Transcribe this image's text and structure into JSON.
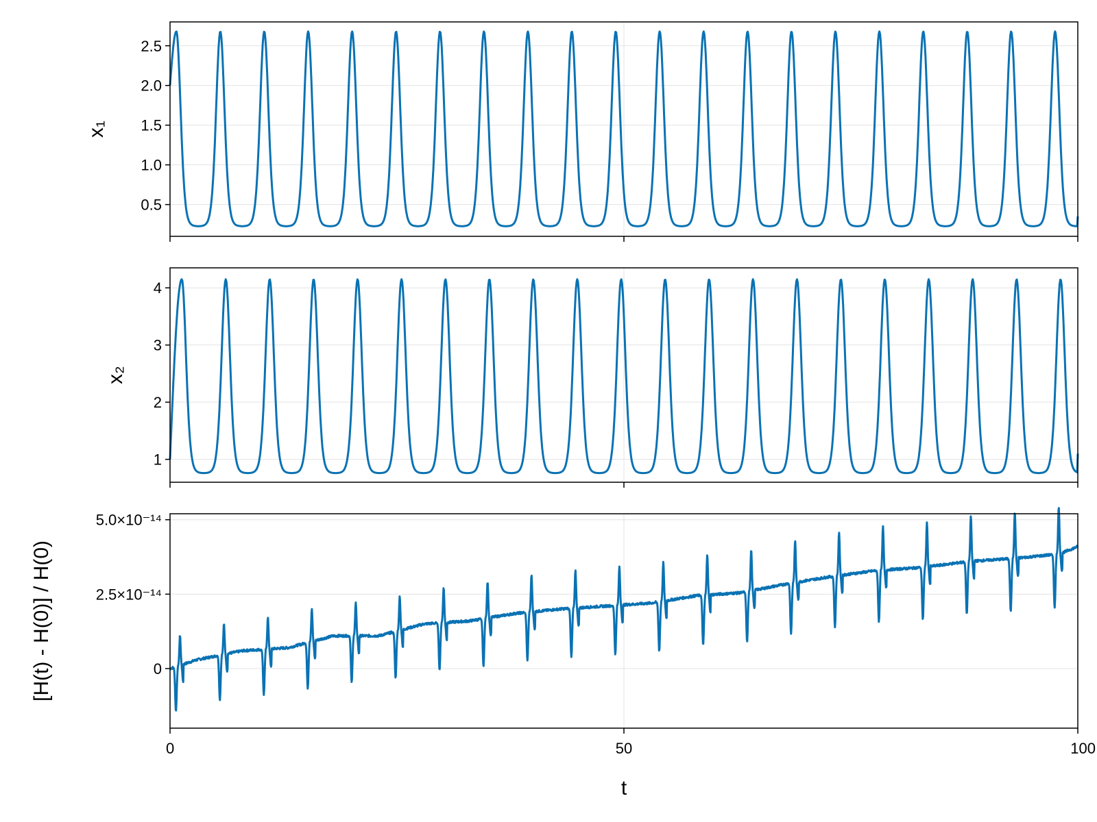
{
  "chart_data": [
    {
      "type": "line",
      "ylabel": "x₁",
      "xlim": [
        0,
        100
      ],
      "ylim": [
        0.1,
        2.8
      ],
      "yticks": [
        {
          "value": 0.5,
          "label": "0.5"
        },
        {
          "value": 1.0,
          "label": "1.0"
        },
        {
          "value": 1.5,
          "label": "1.5"
        },
        {
          "value": 2.0,
          "label": "2.0"
        },
        {
          "value": 2.5,
          "label": "2.5"
        }
      ],
      "grid": true,
      "series": [
        {
          "color": "#0a72b3",
          "model": "periodic-peaks",
          "period": 4.84,
          "first_peak_t": 0.7,
          "start_value": 2.0,
          "peak_value": 2.68,
          "trough_value": 0.22,
          "end_value": 0.35
        }
      ]
    },
    {
      "type": "line",
      "ylabel": "x₂",
      "xlim": [
        0,
        100
      ],
      "ylim": [
        0.6,
        4.35
      ],
      "yticks": [
        {
          "value": 1,
          "label": "1"
        },
        {
          "value": 2,
          "label": "2"
        },
        {
          "value": 3,
          "label": "3"
        },
        {
          "value": 4,
          "label": "4"
        }
      ],
      "grid": true,
      "series": [
        {
          "color": "#0a72b3",
          "model": "periodic-peaks",
          "period": 4.84,
          "first_peak_t": 1.3,
          "start_value": 1.0,
          "peak_value": 4.15,
          "trough_value": 0.75,
          "end_value": 1.1
        }
      ]
    },
    {
      "type": "line",
      "xlabel": "t",
      "ylabel": "[H(t) - H(0)] / H(0)",
      "xlim": [
        0,
        100
      ],
      "ylim": [
        -2e-14,
        5.2e-14
      ],
      "xticks": [
        {
          "value": 0,
          "label": "0"
        },
        {
          "value": 50,
          "label": "50"
        },
        {
          "value": 100,
          "label": "100"
        }
      ],
      "yticks": [
        {
          "value": 0,
          "label": "0"
        },
        {
          "value": 2.5e-14,
          "label": "2.5×10⁻¹⁴"
        },
        {
          "value": 5e-14,
          "label": "5.0×10⁻¹⁴"
        }
      ],
      "grid": true,
      "series": [
        {
          "color": "#0a72b3",
          "model": "drift-with-spikes",
          "period": 4.84,
          "first_spike_t": 1.0,
          "spike_up_start": 1e-14,
          "spike_up_end": 1.6e-14,
          "spike_down_start": -1.5e-14,
          "spike_down_end": -1.8e-14,
          "baseline": [
            [
              0,
              0.0
            ],
            [
              3,
              3e-15
            ],
            [
              8,
              6e-15
            ],
            [
              13,
              7e-15
            ],
            [
              18,
              1.1e-14
            ],
            [
              23,
              1.1e-14
            ],
            [
              28,
              1.5e-14
            ],
            [
              33,
              1.6e-14
            ],
            [
              38,
              1.85e-14
            ],
            [
              43,
              2e-14
            ],
            [
              48,
              2.1e-14
            ],
            [
              53,
              2.2e-14
            ],
            [
              58,
              2.45e-14
            ],
            [
              63,
              2.55e-14
            ],
            [
              68,
              2.85e-14
            ],
            [
              73,
              3.1e-14
            ],
            [
              78,
              3.3e-14
            ],
            [
              83,
              3.4e-14
            ],
            [
              88,
              3.6e-14
            ],
            [
              93,
              3.7e-14
            ],
            [
              98,
              3.85e-14
            ],
            [
              100,
              4.1e-14
            ]
          ]
        }
      ]
    }
  ]
}
